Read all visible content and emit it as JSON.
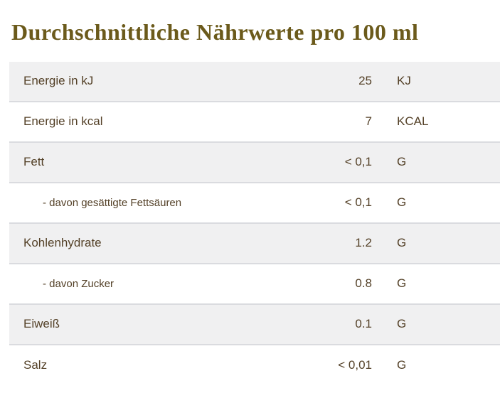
{
  "title": "Durchschnittliche Nährwerte pro 100 ml",
  "colors": {
    "title_text": "#6b5a1b",
    "row_text": "#544128",
    "row_alt_background": "#f0f0f1",
    "row_background": "#ffffff",
    "row_border": "#dadbdf"
  },
  "table": {
    "rows": [
      {
        "label": "Energie in kJ",
        "value": "25",
        "unit": "KJ",
        "sub": false
      },
      {
        "label": "Energie in kcal",
        "value": "7",
        "unit": "KCAL",
        "sub": false
      },
      {
        "label": "Fett",
        "value": "< 0,1",
        "unit": "G",
        "sub": false
      },
      {
        "label": "- davon gesättigte Fettsäuren",
        "value": "< 0,1",
        "unit": "G",
        "sub": true
      },
      {
        "label": "Kohlenhydrate",
        "value": "1.2",
        "unit": "G",
        "sub": false
      },
      {
        "label": "- davon Zucker",
        "value": "0.8",
        "unit": "G",
        "sub": true
      },
      {
        "label": "Eiweiß",
        "value": "0.1",
        "unit": "G",
        "sub": false
      },
      {
        "label": "Salz",
        "value": "< 0,01",
        "unit": "G",
        "sub": false
      }
    ]
  }
}
